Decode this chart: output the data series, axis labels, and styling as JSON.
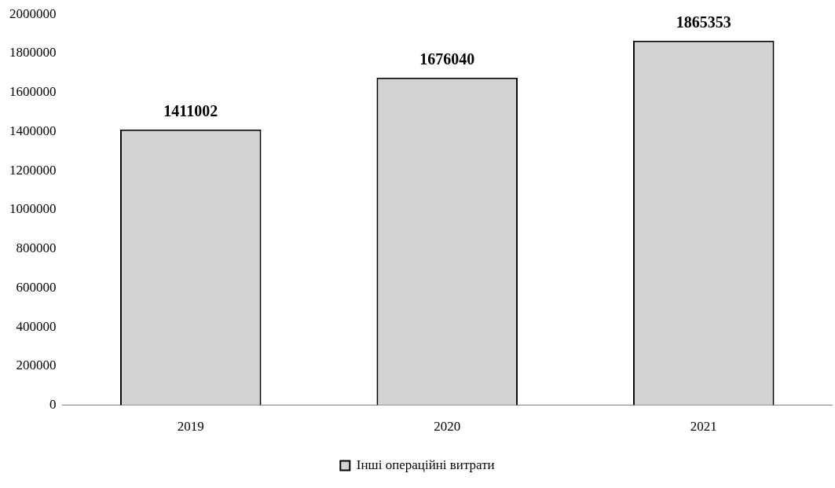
{
  "chart_data": {
    "type": "bar",
    "categories": [
      "2019",
      "2020",
      "2021"
    ],
    "series": [
      {
        "name": "Інші операційні витрати",
        "color": "#d3d3d3",
        "values": [
          1411002,
          1676040,
          1865353
        ]
      }
    ],
    "ylim": [
      0,
      2000000
    ],
    "yticks": [
      0,
      200000,
      400000,
      600000,
      800000,
      1000000,
      1200000,
      1400000,
      1600000,
      1800000,
      2000000
    ],
    "grid": false,
    "legend": "bottom",
    "data_labels": true
  }
}
